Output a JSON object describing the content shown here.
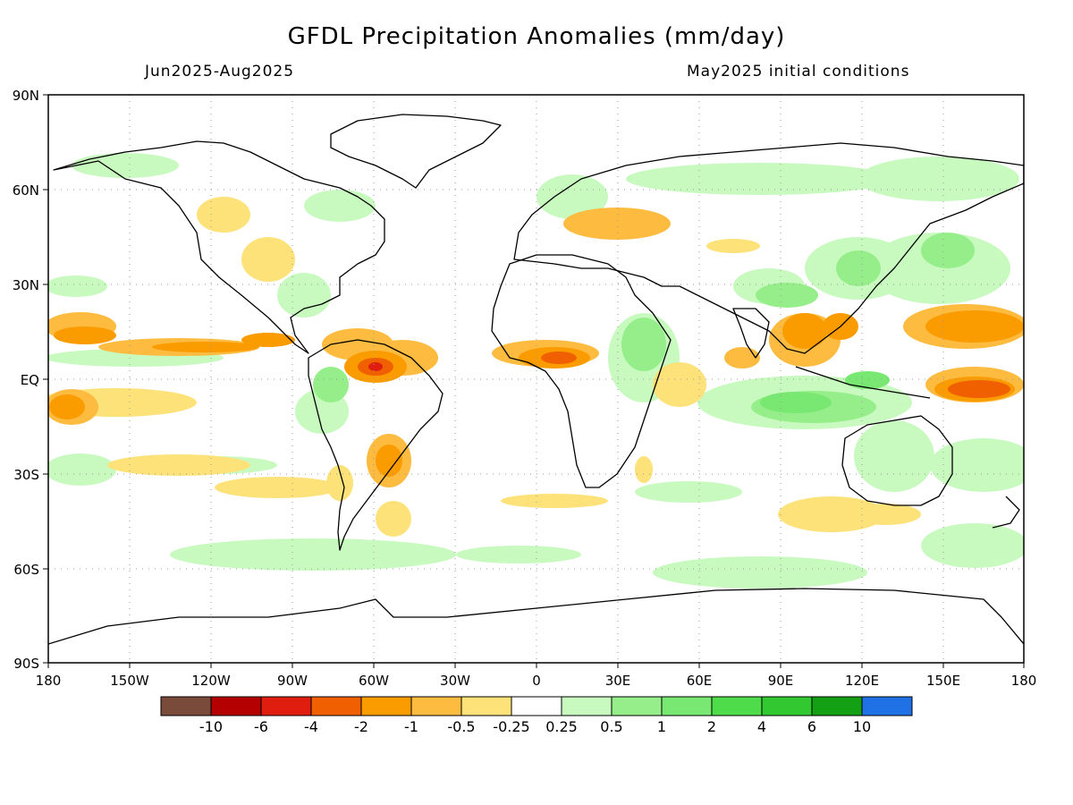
{
  "title": "GFDL Precipitation Anomalies (mm/day)",
  "period": "Jun2025-Aug2025",
  "init": "May2025 initial conditions",
  "lat_labels": [
    "90N",
    "60N",
    "30N",
    "EQ",
    "30S",
    "60S",
    "90S"
  ],
  "lon_labels": [
    "180",
    "150W",
    "120W",
    "90W",
    "60W",
    "30W",
    "0",
    "30E",
    "60E",
    "90E",
    "120E",
    "150E",
    "180"
  ],
  "colorbar": {
    "colors": [
      "#7a4a3a",
      "#b40000",
      "#e01e10",
      "#f06000",
      "#fa9b00",
      "#fdbb40",
      "#fde27a",
      "#ffffff",
      "#c8fac0",
      "#96ee8a",
      "#78e872",
      "#4fdc4a",
      "#32c832",
      "#14a014",
      "#2070e6"
    ],
    "labels": [
      "-10",
      "-6",
      "-4",
      "-2",
      "-1",
      "-0.5",
      "-0.25",
      "0.25",
      "0.5",
      "1",
      "2",
      "4",
      "6",
      "10"
    ]
  },
  "colors": {
    "dry_strong": "#e01e10",
    "dry": "#f06000",
    "dry_moderate": "#fa9b00",
    "dry_weak": "#fdbb40",
    "dry_slight": "#fde27a",
    "wet_slight": "#c8fac0",
    "wet_weak": "#96ee8a",
    "wet": "#78e872",
    "wet_moderate": "#4fdc4a"
  }
}
